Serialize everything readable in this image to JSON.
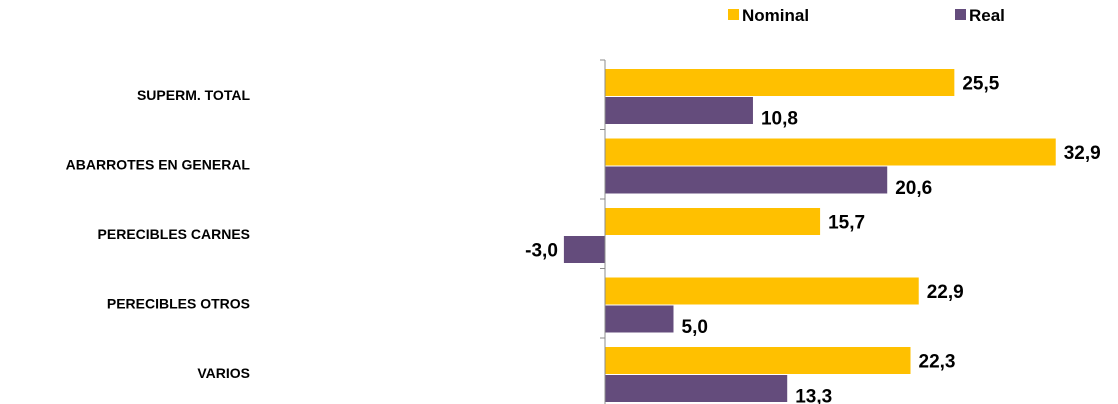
{
  "chart_data": {
    "type": "bar",
    "orientation": "horizontal",
    "categories": [
      "SUPERM. TOTAL",
      "ABARROTES EN GENERAL",
      "PERECIBLES CARNES",
      "PERECIBLES OTROS",
      "VARIOS"
    ],
    "series": [
      {
        "name": "Nominal",
        "color": "#ffc000",
        "values": [
          25.5,
          32.9,
          15.7,
          22.9,
          22.3
        ],
        "labels": [
          "25,5",
          "32,9",
          "15,7",
          "22,9",
          "22,3"
        ]
      },
      {
        "name": "Real",
        "color": "#644c7c",
        "values": [
          10.8,
          20.6,
          -3.0,
          5.0,
          13.3
        ],
        "labels": [
          "10,8",
          "20,6",
          "-3,0",
          "5,0",
          "13,3"
        ]
      }
    ],
    "xlim": [
      -3.0,
      32.9
    ],
    "grid": false,
    "legend_position": "top-right"
  }
}
